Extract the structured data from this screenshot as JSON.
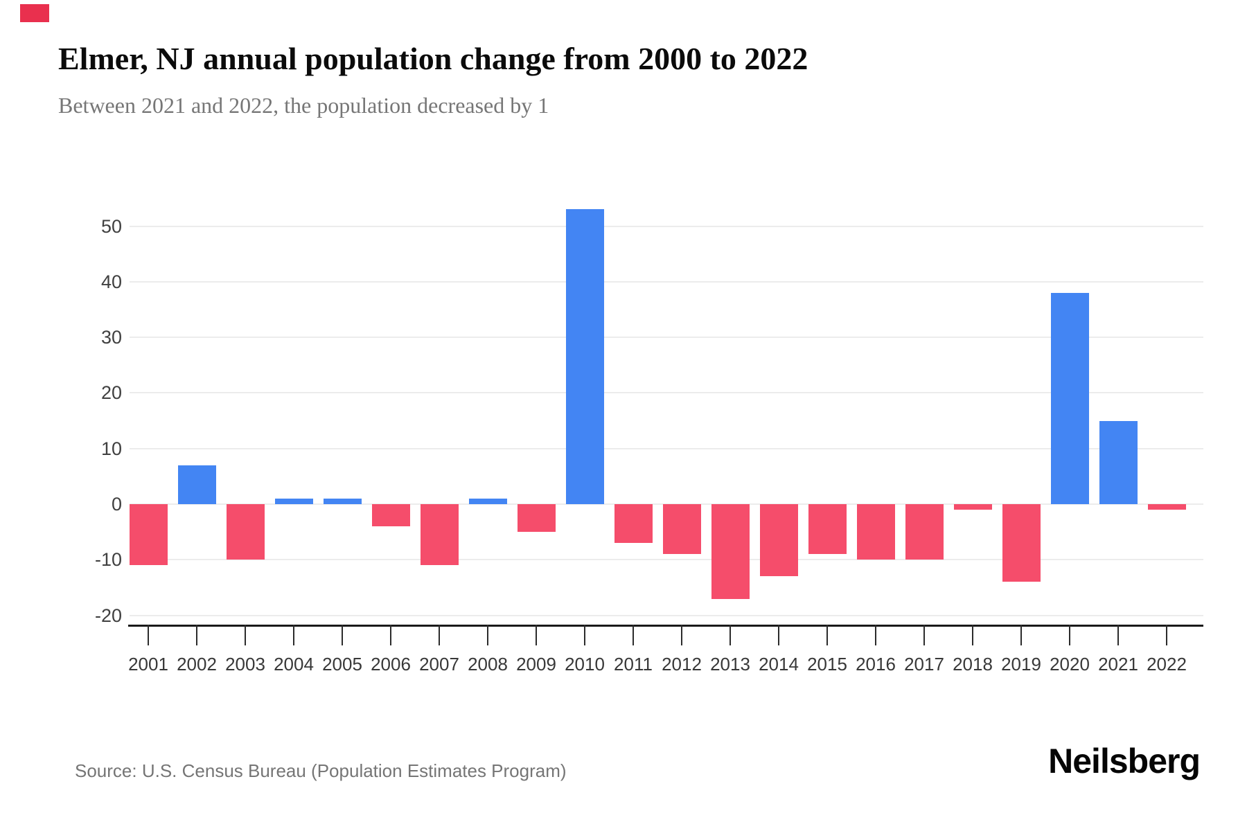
{
  "header": {
    "title": "Elmer, NJ annual population change from 2000 to 2022",
    "subtitle": "Between 2021 and 2022, the population decreased by 1"
  },
  "chart_data": {
    "type": "bar",
    "title": "Elmer, NJ annual population change from 2000 to 2022",
    "subtitle": "Between 2021 and 2022, the population decreased by 1",
    "categories": [
      "2001",
      "2002",
      "2003",
      "2004",
      "2005",
      "2006",
      "2007",
      "2008",
      "2009",
      "2010",
      "2011",
      "2012",
      "2013",
      "2014",
      "2015",
      "2016",
      "2017",
      "2018",
      "2019",
      "2020",
      "2021",
      "2022"
    ],
    "values": [
      -11,
      7,
      -10,
      1,
      1,
      -4,
      -11,
      1,
      -5,
      53,
      -7,
      -9,
      -17,
      -13,
      -9,
      -10,
      -10,
      -1,
      -14,
      38,
      15,
      -1
    ],
    "yticks": [
      50,
      40,
      30,
      20,
      10,
      0,
      -10,
      -20
    ],
    "ylim": [
      -20,
      55
    ],
    "xlabel": "",
    "ylabel": "",
    "grid": true,
    "legend": false,
    "positive_color": "#4385F3",
    "negative_color": "#F54D6B",
    "gridline_color": "#ECECEC",
    "axis_color": "#1A1A1A"
  },
  "footer": {
    "source": "Source: U.S. Census Bureau (Population Estimates Program)",
    "logo": "Neilsberg"
  },
  "corner_mark": {
    "color": "#E9304E"
  }
}
